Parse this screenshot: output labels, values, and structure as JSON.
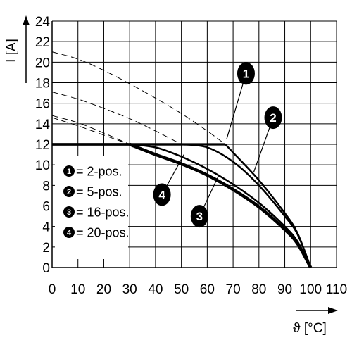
{
  "chart_data": {
    "type": "line",
    "title": "",
    "xlabel": "ϑ [°C]",
    "ylabel": "I [A]",
    "xlim": [
      0,
      110
    ],
    "ylim": [
      0,
      24
    ],
    "xticks": [
      0,
      10,
      20,
      30,
      40,
      50,
      60,
      70,
      80,
      90,
      100,
      110
    ],
    "yticks": [
      0,
      2,
      4,
      6,
      8,
      10,
      12,
      14,
      16,
      18,
      20,
      22,
      24
    ],
    "grid": true,
    "legend_position": "bottom-left",
    "series": [
      {
        "name": "2-pos.",
        "badge": "1",
        "line_weight": "medium",
        "x": [
          0,
          10,
          20,
          30,
          40,
          50,
          60,
          67,
          70,
          80,
          90,
          95,
          100
        ],
        "y": [
          12,
          12,
          12,
          12,
          12,
          12,
          12,
          12,
          11.2,
          8.5,
          5.3,
          3.3,
          0
        ],
        "dashed_x": [
          0,
          10,
          20,
          30,
          40,
          50,
          60,
          67
        ],
        "dashed_y": [
          21,
          20.3,
          19.2,
          17.9,
          16.5,
          15.0,
          13.3,
          12.0
        ]
      },
      {
        "name": "5-pos.",
        "badge": "2",
        "line_weight": "medium",
        "x": [
          0,
          10,
          20,
          30,
          40,
          50,
          60,
          70,
          80,
          90,
          95,
          100
        ],
        "y": [
          12,
          12,
          12,
          12,
          12,
          12,
          11.7,
          10.3,
          8.0,
          5.0,
          3.2,
          0
        ],
        "dashed_x": [
          0,
          10,
          20,
          30,
          40,
          50
        ],
        "dashed_y": [
          17.1,
          16.4,
          15.5,
          14.5,
          13.3,
          12.0
        ]
      },
      {
        "name": "16-pos.",
        "badge": "3",
        "line_weight": "medium",
        "x": [
          0,
          10,
          20,
          30,
          40,
          50,
          60,
          70,
          80,
          90,
          95,
          100
        ],
        "y": [
          12,
          12,
          12,
          12,
          11.7,
          10.8,
          9.6,
          8.1,
          6.3,
          4.0,
          2.5,
          0
        ],
        "dashed_x": [
          0,
          10,
          20,
          30
        ],
        "dashed_y": [
          14.8,
          14.1,
          13.1,
          12.0
        ]
      },
      {
        "name": "20-pos.",
        "badge": "4",
        "line_weight": "heavy",
        "x": [
          0,
          10,
          20,
          30,
          40,
          50,
          60,
          70,
          80,
          90,
          95,
          100
        ],
        "y": [
          12,
          12,
          12,
          12,
          11.0,
          10.1,
          9.0,
          7.6,
          5.9,
          3.7,
          2.3,
          0
        ],
        "dashed_x": [
          0,
          10,
          20,
          30
        ],
        "dashed_y": [
          14.6,
          13.8,
          12.9,
          12.0
        ]
      }
    ],
    "badges": [
      {
        "label": "1",
        "x": 75,
        "y": 18.9,
        "pointer_x": 67.5,
        "pointer_y": 12.5
      },
      {
        "label": "2",
        "x": 85.5,
        "y": 14.6,
        "pointer_x": 78,
        "pointer_y": 9.3
      },
      {
        "label": "4",
        "x": 42.5,
        "y": 7.1,
        "pointer_x": 51,
        "pointer_y": 11.0
      },
      {
        "label": "3",
        "x": 57,
        "y": 5.0,
        "pointer_x": 64.5,
        "pointer_y": 9.0
      }
    ],
    "legend": [
      {
        "num": "1",
        "text": "= 2-pos."
      },
      {
        "num": "2",
        "text": "= 5-pos."
      },
      {
        "num": "3",
        "text": "= 16-pos."
      },
      {
        "num": "4",
        "text": "= 20-pos."
      }
    ]
  }
}
